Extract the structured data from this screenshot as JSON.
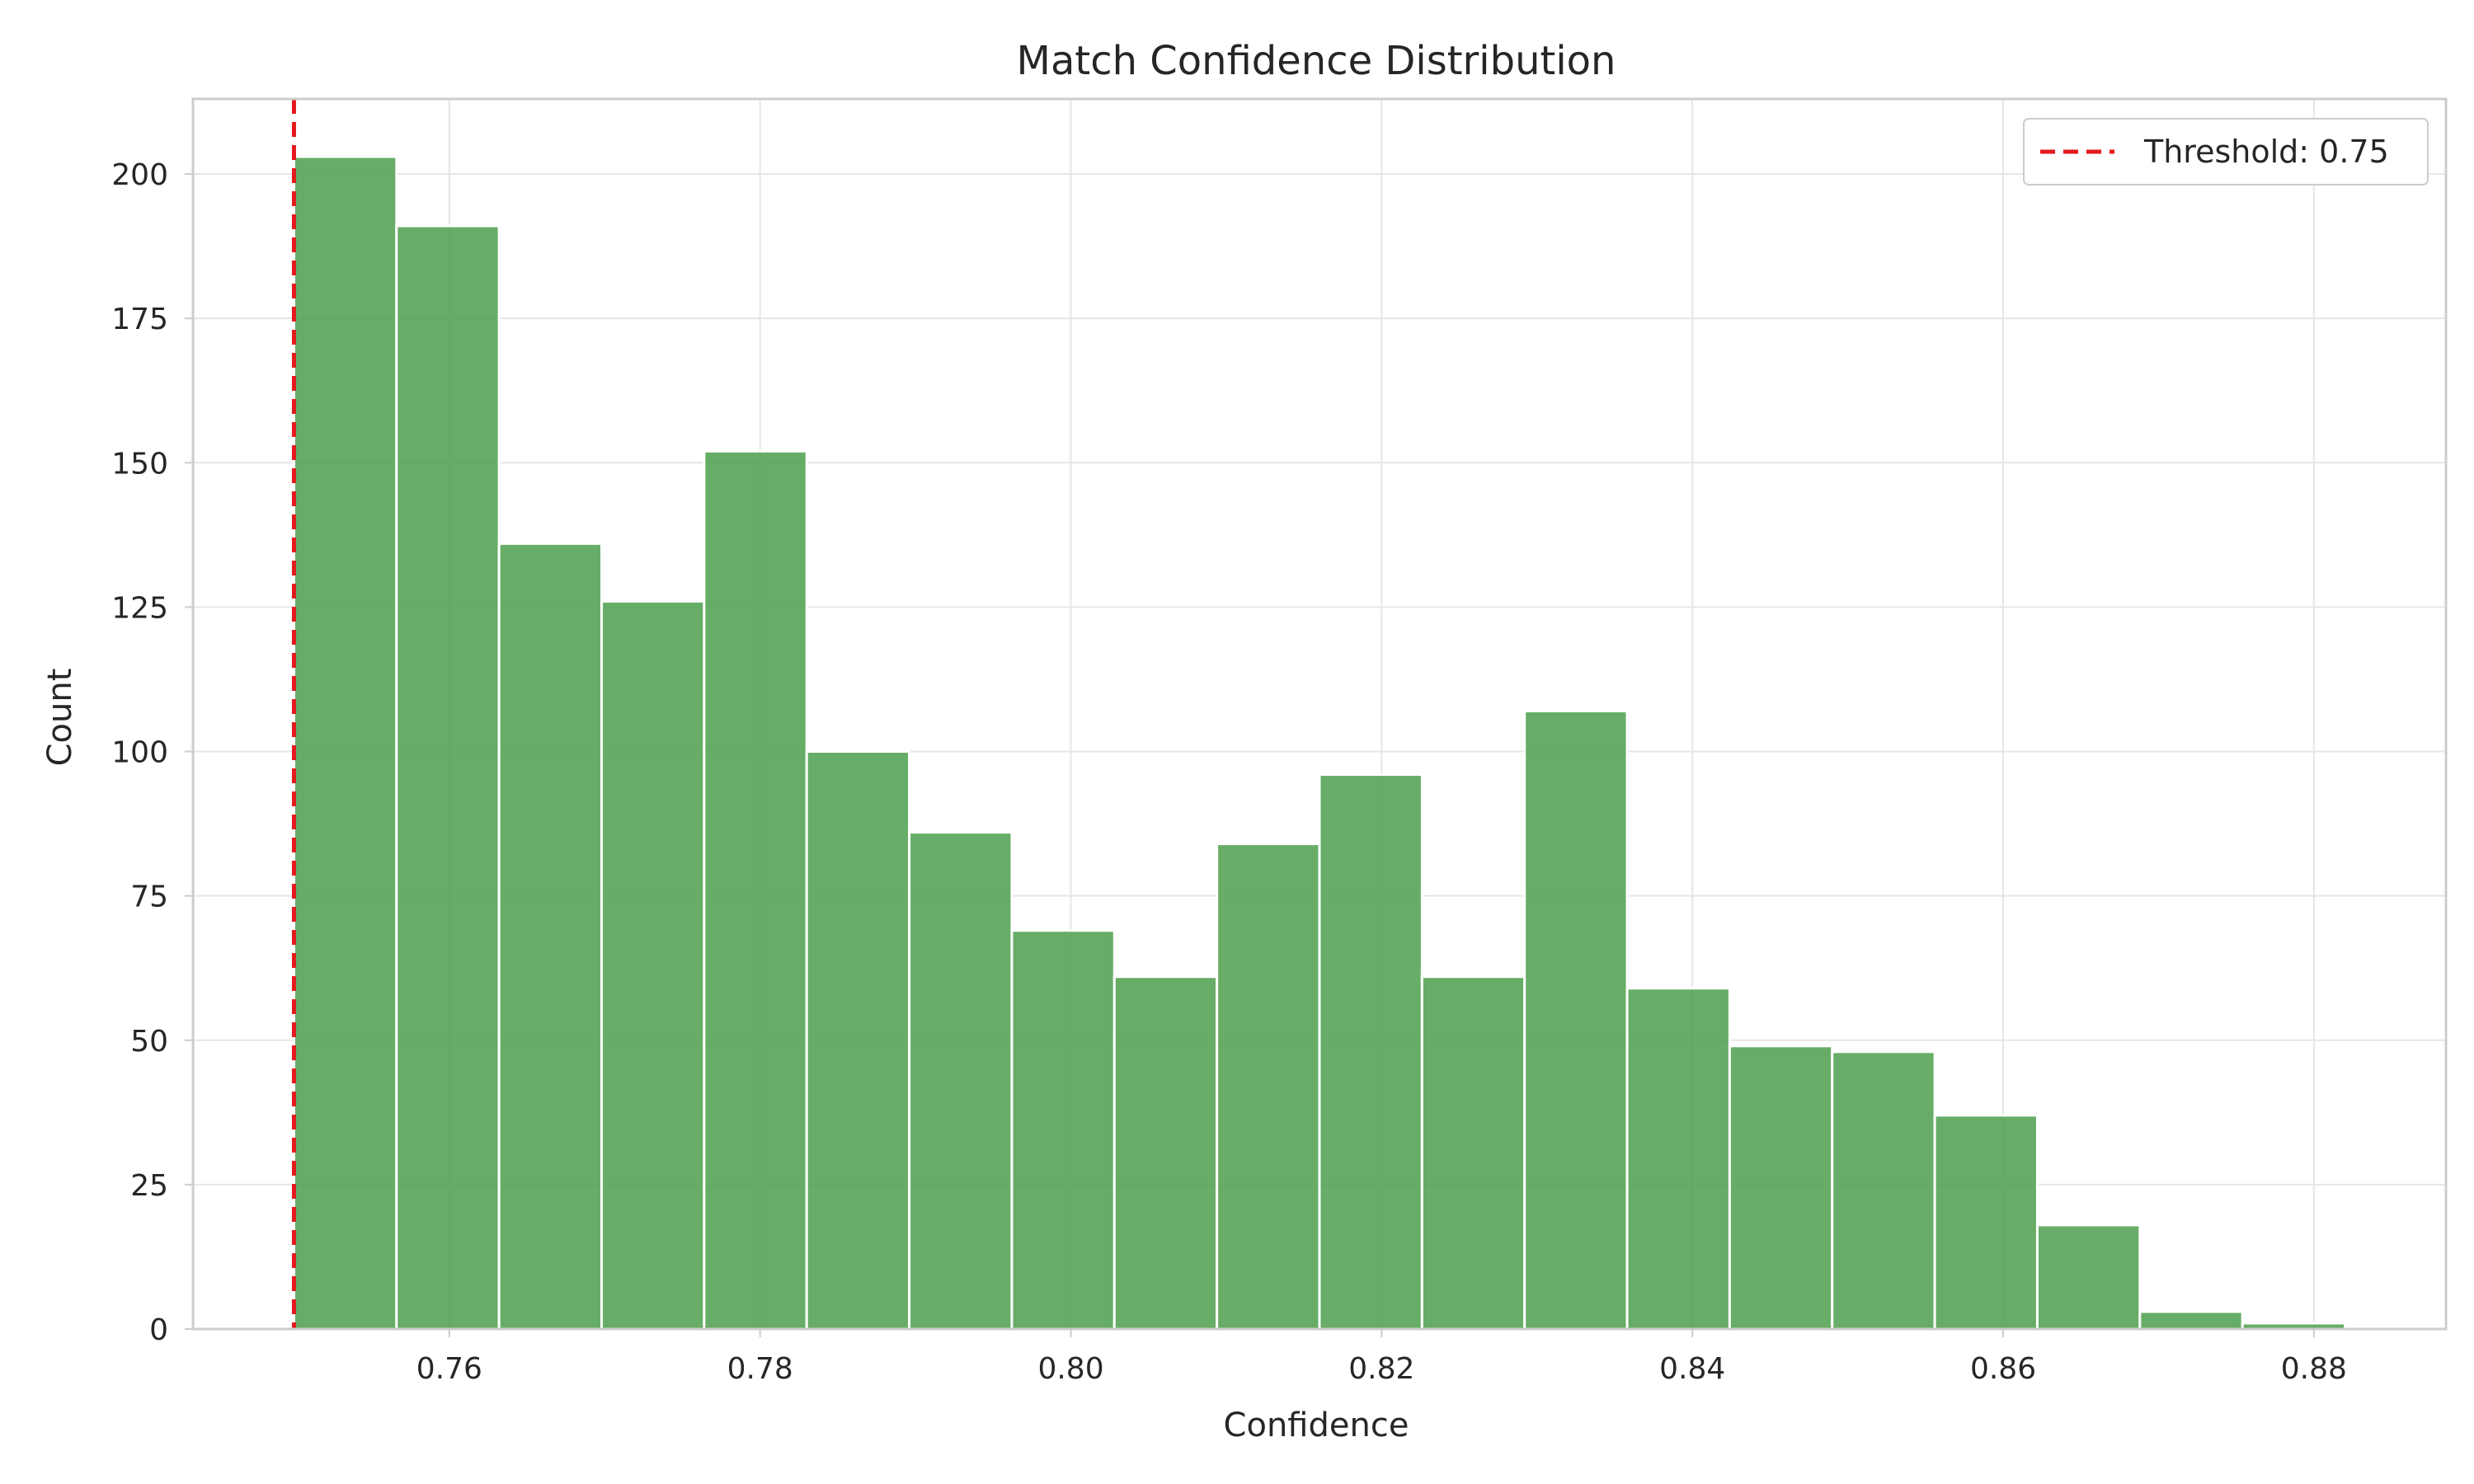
{
  "chart_data": {
    "type": "bar",
    "title": "Match Confidence Distribution",
    "xlabel": "Confidence",
    "ylabel": "Count",
    "xlim": [
      0.7435,
      0.8885
    ],
    "ylim": [
      0,
      213
    ],
    "xticks": [
      "0.76",
      "0.78",
      "0.80",
      "0.82",
      "0.84",
      "0.86",
      "0.88"
    ],
    "yticks": [
      "0",
      "25",
      "50",
      "75",
      "100",
      "125",
      "150",
      "175",
      "200"
    ],
    "grid": true,
    "legend_position": "top-right",
    "bin_edges": [
      0.75,
      0.7566,
      0.7632,
      0.7698,
      0.7764,
      0.783,
      0.7896,
      0.7962,
      0.8028,
      0.8094,
      0.816,
      0.8226,
      0.8292,
      0.8358,
      0.8424,
      0.849,
      0.8556,
      0.8622,
      0.8688,
      0.8754,
      0.882
    ],
    "values": [
      203,
      191,
      136,
      126,
      152,
      100,
      86,
      69,
      61,
      84,
      96,
      61,
      107,
      59,
      49,
      48,
      37,
      18,
      3,
      1
    ],
    "threshold": {
      "value": 0.75,
      "label": "Threshold: 0.75",
      "color": "#e31a1c"
    },
    "bar_color": "#4c9f4c"
  }
}
